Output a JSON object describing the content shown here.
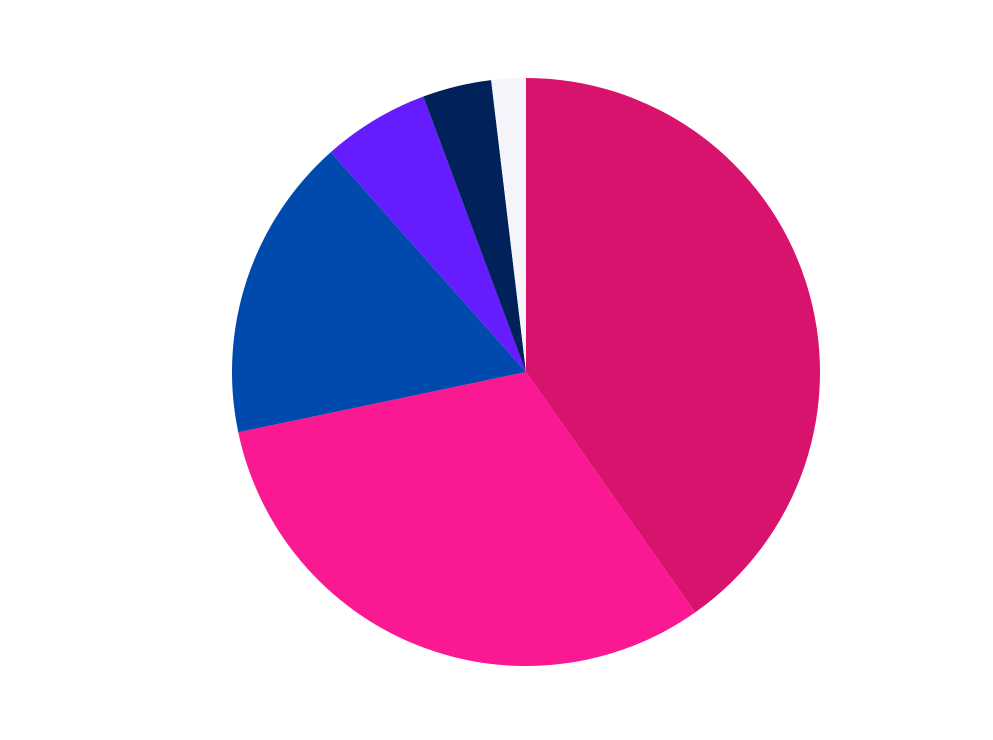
{
  "chart_data": {
    "type": "pie",
    "title": "",
    "start_angle": "12 o'clock",
    "direction": "clockwise",
    "legend": "none",
    "slices": [
      {
        "value": 40.4,
        "color": "#D7136D"
      },
      {
        "value": 31.6,
        "color": "#FA1893"
      },
      {
        "value": 16.8,
        "color": "#004AAD"
      },
      {
        "value": 5.9,
        "color": "#651CFF"
      },
      {
        "value": 3.8,
        "color": "#00215A"
      },
      {
        "value": 1.9,
        "color": "#F4F4FA"
      }
    ]
  }
}
